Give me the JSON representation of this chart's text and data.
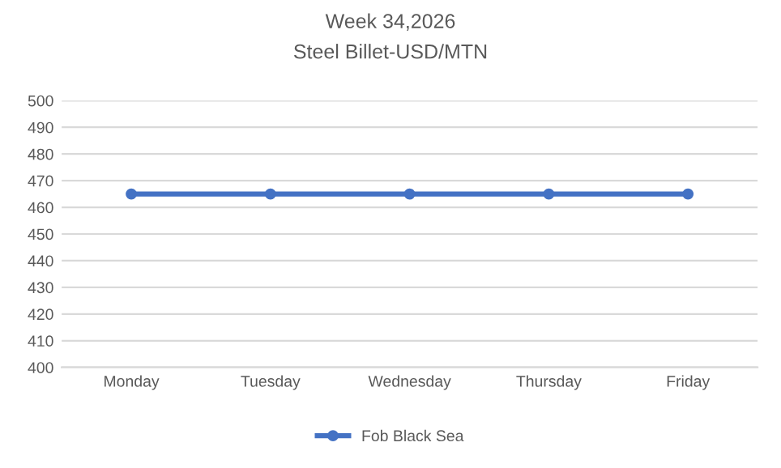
{
  "chart_data": {
    "type": "line",
    "title": "Week 34,2026",
    "subtitle": "Steel Billet-USD/MTN",
    "categories": [
      "Monday",
      "Tuesday",
      "Wednesday",
      "Thursday",
      "Friday"
    ],
    "series": [
      {
        "name": "Fob Black Sea",
        "color": "#4472c4",
        "values": [
          465,
          465,
          465,
          465,
          465
        ]
      }
    ],
    "ylim": [
      400,
      500
    ],
    "yticks": [
      400,
      410,
      420,
      430,
      440,
      450,
      460,
      470,
      480,
      490,
      500
    ],
    "grid": "y",
    "legend": "bottom",
    "marker": "circle",
    "line_style": "solid"
  }
}
